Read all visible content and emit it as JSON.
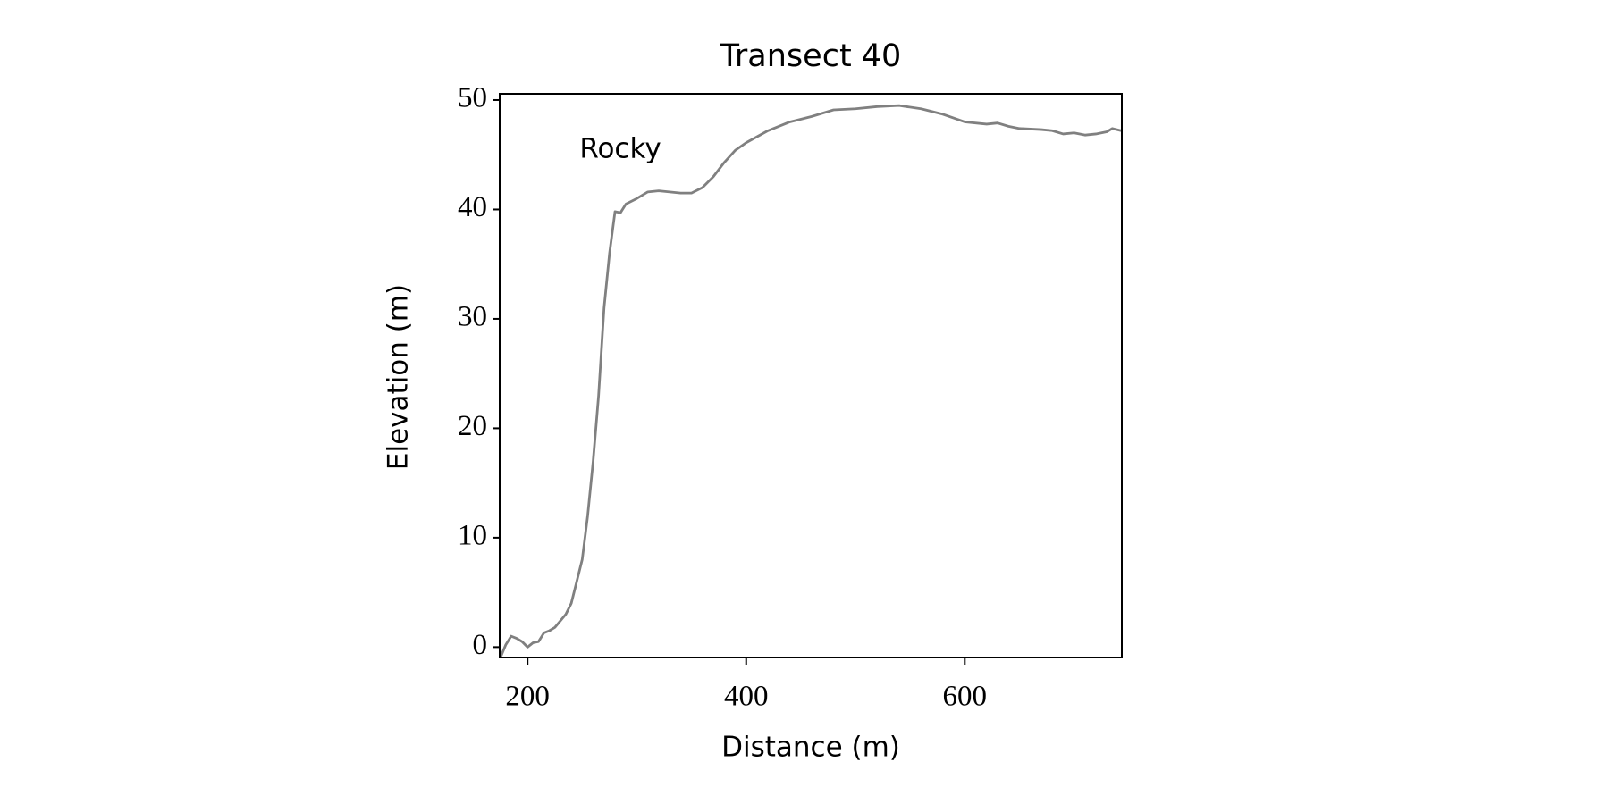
{
  "chart_data": {
    "type": "line",
    "title": "Transect 40",
    "x_label": "Distance (m)",
    "y_label": "Elevation (m)",
    "annotation": "Rocky",
    "x": [
      175,
      180,
      185,
      190,
      195,
      200,
      205,
      210,
      215,
      220,
      225,
      230,
      235,
      240,
      245,
      250,
      255,
      260,
      265,
      270,
      275,
      280,
      285,
      290,
      300,
      310,
      320,
      330,
      340,
      350,
      360,
      370,
      380,
      390,
      400,
      420,
      440,
      460,
      480,
      500,
      520,
      540,
      560,
      580,
      600,
      620,
      630,
      640,
      650,
      670,
      680,
      690,
      700,
      710,
      720,
      730,
      735,
      743
    ],
    "values": [
      -1,
      0.2,
      1.0,
      0.8,
      0.5,
      0,
      0.4,
      0.5,
      1.3,
      1.5,
      1.8,
      2.4,
      3.0,
      4.0,
      6.0,
      8,
      12,
      17,
      23,
      31,
      36,
      39.8,
      39.7,
      40.5,
      41,
      41.6,
      41.7,
      41.6,
      41.5,
      41.5,
      42,
      43,
      44.3,
      45.4,
      46.1,
      47.2,
      48,
      48.5,
      49.1,
      49.2,
      49.4,
      49.5,
      49.2,
      48.7,
      48.0,
      47.8,
      47.9,
      47.6,
      47.4,
      47.3,
      47.2,
      46.9,
      47.0,
      46.8,
      46.9,
      47.1,
      47.4,
      47.2
    ],
    "color": "#808080",
    "xlim": [
      174.5,
      743.7
    ],
    "ylim": [
      -0.95,
      50.57
    ],
    "xticks": [
      200,
      400,
      600
    ],
    "yticks": [
      0,
      10,
      20,
      30,
      40,
      50
    ],
    "grid": false
  }
}
